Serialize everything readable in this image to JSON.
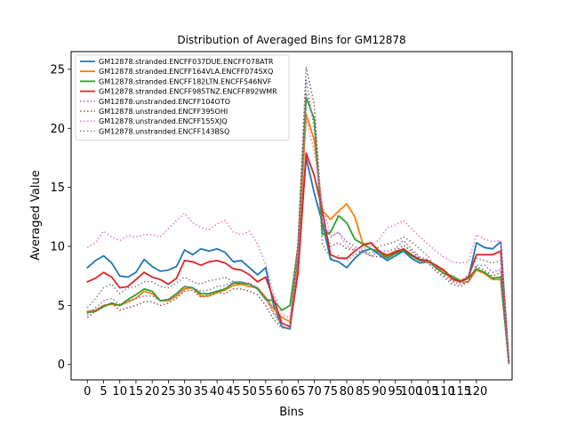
{
  "chart_data": {
    "type": "line",
    "title": "Distribution of Averaged Bins for GM12878",
    "xlabel": "Bins",
    "ylabel": "Averaged Value",
    "xlim": [
      -5,
      131
    ],
    "ylim": [
      -1.3,
      26.5
    ],
    "xticks": [
      "0",
      "5",
      "10",
      "15",
      "20",
      "25",
      "30",
      "35",
      "40",
      "45",
      "50",
      "55",
      "60",
      "65",
      "70",
      "75",
      "80",
      "85",
      "90",
      "95",
      "100",
      "105",
      "110",
      "115",
      "120"
    ],
    "yticks": [
      "0",
      "5",
      "10",
      "15",
      "20",
      "25"
    ],
    "grid": false,
    "legend_position": "top-left",
    "x_step": 5,
    "series": [
      {
        "name": "GM12878.stranded.ENCFF037DUE.ENCFF078ATR",
        "color": "#1f77b4",
        "style": "solid",
        "values": [
          8.2,
          8.8,
          9.2,
          8.6,
          7.5,
          7.4,
          7.8,
          8.9,
          8.3,
          7.9,
          8.0,
          8.3,
          9.7,
          9.3,
          9.8,
          9.6,
          9.8,
          9.5,
          8.7,
          8.8,
          8.2,
          7.6,
          8.2,
          5.0,
          3.2,
          3.0,
          9.0,
          17.5,
          14.5,
          12.0,
          8.9,
          8.7,
          8.2,
          9.0,
          9.6,
          9.8,
          9.3,
          8.8,
          9.2,
          9.6,
          9.0,
          8.6,
          8.7,
          8.4,
          7.9,
          7.2,
          7.0,
          7.3,
          10.3,
          9.9,
          9.8,
          10.4,
          0.2
        ]
      },
      {
        "name": "GM12878.stranded.ENCFF164VLA.ENCFF074SXQ",
        "color": "#ff7f0e",
        "style": "solid",
        "values": [
          4.5,
          4.6,
          5.0,
          5.1,
          5.0,
          5.3,
          5.6,
          6.2,
          6.0,
          5.4,
          5.4,
          5.8,
          6.4,
          6.5,
          5.8,
          5.8,
          6.1,
          6.3,
          6.7,
          6.8,
          6.6,
          6.5,
          5.7,
          4.7,
          4.0,
          3.6,
          8.5,
          21.2,
          19.0,
          13.0,
          12.3,
          13.0,
          13.6,
          12.5,
          10.2,
          10.3,
          9.5,
          9.3,
          9.6,
          9.7,
          9.3,
          8.8,
          8.7,
          8.3,
          7.9,
          7.2,
          7.0,
          7.0,
          8.0,
          7.7,
          7.2,
          7.2,
          0.1
        ]
      },
      {
        "name": "GM12878.stranded.ENCFF182LTN.ENCFF546NVF",
        "color": "#2ca02c",
        "style": "solid",
        "values": [
          4.4,
          4.5,
          4.9,
          5.2,
          5.0,
          5.5,
          5.9,
          6.4,
          6.2,
          5.4,
          5.5,
          6.0,
          6.6,
          6.5,
          6.0,
          6.0,
          6.2,
          6.4,
          6.9,
          6.9,
          6.8,
          6.4,
          5.5,
          5.4,
          4.6,
          5.0,
          10.0,
          22.6,
          20.8,
          11.0,
          11.2,
          12.6,
          12.0,
          10.6,
          10.2,
          9.8,
          9.5,
          9.0,
          9.4,
          9.7,
          9.2,
          8.8,
          8.8,
          8.2,
          7.7,
          7.5,
          7.1,
          7.3,
          8.1,
          7.8,
          7.3,
          7.4,
          0.1
        ]
      },
      {
        "name": "GM12878.stranded.ENCFF985TNZ.ENCFF892WMR",
        "color": "#d62728",
        "style": "solid",
        "values": [
          7.0,
          7.3,
          7.8,
          7.4,
          6.5,
          6.6,
          7.2,
          7.8,
          7.4,
          7.2,
          6.8,
          7.3,
          8.8,
          8.7,
          8.4,
          8.7,
          8.8,
          8.6,
          8.1,
          8.0,
          7.6,
          7.0,
          7.4,
          5.5,
          3.5,
          3.2,
          7.8,
          17.9,
          16.0,
          13.0,
          9.3,
          9.0,
          9.0,
          9.6,
          10.1,
          10.3,
          9.6,
          9.2,
          9.5,
          9.8,
          9.3,
          8.9,
          8.8,
          8.4,
          8.0,
          7.3,
          7.0,
          7.4,
          9.3,
          9.3,
          9.3,
          9.6,
          0.1
        ]
      },
      {
        "name": "GM12878.unstranded.ENCFF104OTO",
        "color": "#9467bd",
        "style": "dotted",
        "values": [
          4.2,
          4.8,
          5.4,
          5.6,
          5.1,
          5.4,
          5.6,
          5.8,
          5.8,
          5.4,
          5.5,
          5.9,
          6.6,
          6.5,
          6.2,
          6.3,
          6.6,
          6.7,
          7.0,
          7.0,
          6.9,
          6.5,
          5.6,
          4.4,
          3.4,
          3.3,
          10.3,
          24.1,
          20.0,
          12.0,
          10.8,
          11.2,
          10.4,
          10.0,
          9.6,
          9.2,
          9.6,
          9.6,
          9.8,
          10.5,
          9.8,
          9.1,
          8.9,
          8.1,
          7.6,
          7.0,
          6.8,
          7.0,
          8.4,
          8.4,
          7.8,
          8.1,
          0.1
        ]
      },
      {
        "name": "GM12878.unstranded.ENCFF395OHI",
        "color": "#8c564b",
        "style": "dotted",
        "values": [
          4.0,
          4.5,
          5.0,
          5.2,
          4.6,
          4.8,
          5.0,
          5.3,
          5.3,
          5.0,
          5.2,
          5.6,
          6.2,
          6.3,
          5.7,
          5.9,
          6.1,
          6.0,
          6.4,
          6.4,
          6.2,
          5.9,
          5.0,
          3.8,
          3.1,
          3.0,
          10.5,
          25.2,
          22.0,
          12.0,
          10.0,
          10.3,
          9.8,
          9.7,
          9.5,
          9.2,
          9.1,
          9.1,
          9.6,
          10.1,
          9.6,
          9.0,
          8.6,
          7.9,
          7.4,
          6.8,
          6.6,
          7.0,
          8.3,
          8.0,
          7.5,
          7.8,
          0.1
        ]
      },
      {
        "name": "GM12878.unstranded.ENCFF155XJQ",
        "color": "#e377c2",
        "style": "dotted",
        "values": [
          9.9,
          10.3,
          11.3,
          10.8,
          10.5,
          10.9,
          10.8,
          11.0,
          11.0,
          10.8,
          11.5,
          12.2,
          12.8,
          12.0,
          11.6,
          11.4,
          11.9,
          12.2,
          11.2,
          11.0,
          11.3,
          10.2,
          8.5,
          6.0,
          4.2,
          4.0,
          10.0,
          21.0,
          18.0,
          13.6,
          10.9,
          11.2,
          10.0,
          9.8,
          9.8,
          10.0,
          10.6,
          11.6,
          11.8,
          12.2,
          11.5,
          10.8,
          10.2,
          9.6,
          9.1,
          8.7,
          8.6,
          8.7,
          11.0,
          10.6,
          10.4,
          10.5,
          0.1
        ]
      },
      {
        "name": "GM12878.unstranded.ENCFF143BSQ",
        "color": "#7f7f7f",
        "style": "dotted",
        "values": [
          4.8,
          5.6,
          6.5,
          6.8,
          6.0,
          6.5,
          6.6,
          7.0,
          7.0,
          6.6,
          6.5,
          6.9,
          7.4,
          7.0,
          6.8,
          7.1,
          7.2,
          7.4,
          7.0,
          7.0,
          6.8,
          6.5,
          5.6,
          4.3,
          3.2,
          3.0,
          9.0,
          23.0,
          20.5,
          10.2,
          9.0,
          9.2,
          8.8,
          9.3,
          9.6,
          9.4,
          10.0,
          10.2,
          10.4,
          10.8,
          10.4,
          9.8,
          9.2,
          8.2,
          7.6,
          7.1,
          7.0,
          7.6,
          9.0,
          8.8,
          8.6,
          8.8,
          0.1
        ]
      }
    ]
  }
}
